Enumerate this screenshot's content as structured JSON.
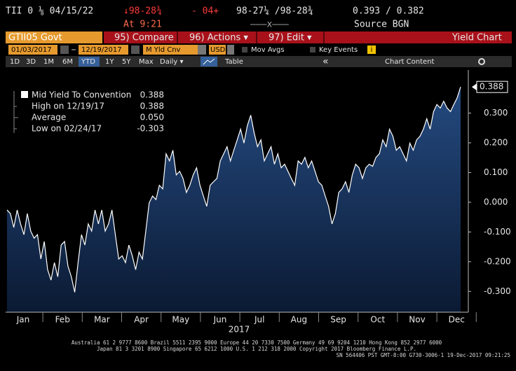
{
  "header": {
    "security": "TII 0 ⅛ 04/15/22",
    "last_price": "↓98-28¾",
    "change": "- 04+",
    "bid_ask": "98-27¼ /98-28¾",
    "yields": "0.393 / 0.382",
    "time": "At 9:21",
    "volume": "———x———",
    "source": "Source BGN"
  },
  "toolbar": {
    "ticker": "GTII05 Govt",
    "menus": [
      "95) Compare",
      "96) Actions ▾",
      "97) Edit ▾"
    ],
    "function_name": "Yield Chart",
    "start_date": "01/03/2017",
    "end_date": "12/19/2017",
    "field": "M Yld Cnv",
    "currency": "USD",
    "options": [
      "Mov Avgs",
      "Key Events"
    ],
    "info": "i",
    "ranges": [
      "1D",
      "3D",
      "1M",
      "6M",
      "YTD",
      "1Y",
      "5Y",
      "Max"
    ],
    "active_range": 4,
    "frequency": "Daily ▾",
    "table": "Table",
    "collapse": "«",
    "chart_content": "Chart Content"
  },
  "chart_data": {
    "type": "area",
    "legend": [
      {
        "label": "Mid Yield To Convention",
        "value": "0.388"
      },
      {
        "label": "High on 12/19/17",
        "value": "0.388"
      },
      {
        "label": "Average",
        "value": "0.050"
      },
      {
        "label": "Low on 02/24/17",
        "value": "-0.303"
      }
    ],
    "last_value_label": "0.388",
    "month_labels": [
      "Jan",
      "Feb",
      "Mar",
      "Apr",
      "May",
      "Jun",
      "Jul",
      "Aug",
      "Sep",
      "Oct",
      "Nov",
      "Dec"
    ],
    "x_title": "2017",
    "ylim": [
      -0.37,
      0.445
    ],
    "yticks": [
      {
        "value": 0.3,
        "label": "0.300"
      },
      {
        "value": 0.2,
        "label": "0.200"
      },
      {
        "value": 0.1,
        "label": "0.100"
      },
      {
        "value": 0,
        "label": "0.000"
      },
      {
        "value": -0.1,
        "label": "-0.100"
      },
      {
        "value": -0.2,
        "label": "-0.200"
      },
      {
        "value": -0.3,
        "label": "-0.300"
      }
    ],
    "series": [
      {
        "name": "Mid Yield To Convention",
        "color": "#ffffff",
        "fill": "#1d3b68",
        "values": [
          -0.026,
          -0.038,
          -0.085,
          -0.026,
          -0.073,
          -0.109,
          -0.038,
          -0.097,
          -0.121,
          -0.109,
          -0.191,
          -0.132,
          -0.227,
          -0.262,
          -0.203,
          -0.251,
          -0.144,
          -0.132,
          -0.215,
          -0.251,
          -0.303,
          -0.203,
          -0.109,
          -0.144,
          -0.073,
          -0.097,
          -0.026,
          -0.073,
          -0.026,
          -0.097,
          -0.073,
          -0.026,
          -0.109,
          -0.191,
          -0.18,
          -0.203,
          -0.144,
          -0.18,
          -0.227,
          -0.168,
          -0.191,
          -0.097,
          -0.002,
          0.021,
          0.009,
          0.057,
          0.045,
          0.163,
          0.139,
          0.175,
          0.092,
          0.104,
          0.08,
          0.033,
          0.057,
          0.092,
          0.116,
          0.057,
          0.021,
          -0.014,
          0.057,
          0.069,
          0.08,
          0.139,
          0.163,
          0.187,
          0.139,
          0.175,
          0.21,
          0.246,
          0.199,
          0.258,
          0.293,
          0.234,
          0.187,
          0.21,
          0.139,
          0.163,
          0.187,
          0.128,
          0.163,
          0.116,
          0.128,
          0.104,
          0.08,
          0.057,
          0.139,
          0.128,
          0.151,
          0.116,
          0.139,
          0.104,
          0.069,
          0.057,
          0.021,
          -0.014,
          -0.073,
          -0.038,
          0.033,
          0.045,
          0.069,
          0.033,
          0.092,
          0.128,
          0.116,
          0.08,
          0.116,
          0.128,
          0.121,
          0.151,
          0.163,
          0.21,
          0.187,
          0.246,
          0.222,
          0.175,
          0.187,
          0.163,
          0.139,
          0.199,
          0.175,
          0.21,
          0.222,
          0.246,
          0.281,
          0.246,
          0.305,
          0.329,
          0.317,
          0.34,
          0.317,
          0.305,
          0.329,
          0.352,
          0.388
        ]
      }
    ]
  },
  "footer": {
    "line1": "Australia 61 2 9777 8600 Brazil 5511 2395 9000 Europe 44 20 7330 7500 Germany 49 69 9204 1210 Hong Kong 852 2977 6000",
    "line2": "Japan 81 3 3201 8900       Singapore 65 6212 1000       U.S. 1 212 318 2000              Copyright 2017 Bloomberg Finance L.P.",
    "line3": "SN 564406 PST  GMT-8:00 G730-3006-1 19-Dec-2017 09:21:25"
  }
}
